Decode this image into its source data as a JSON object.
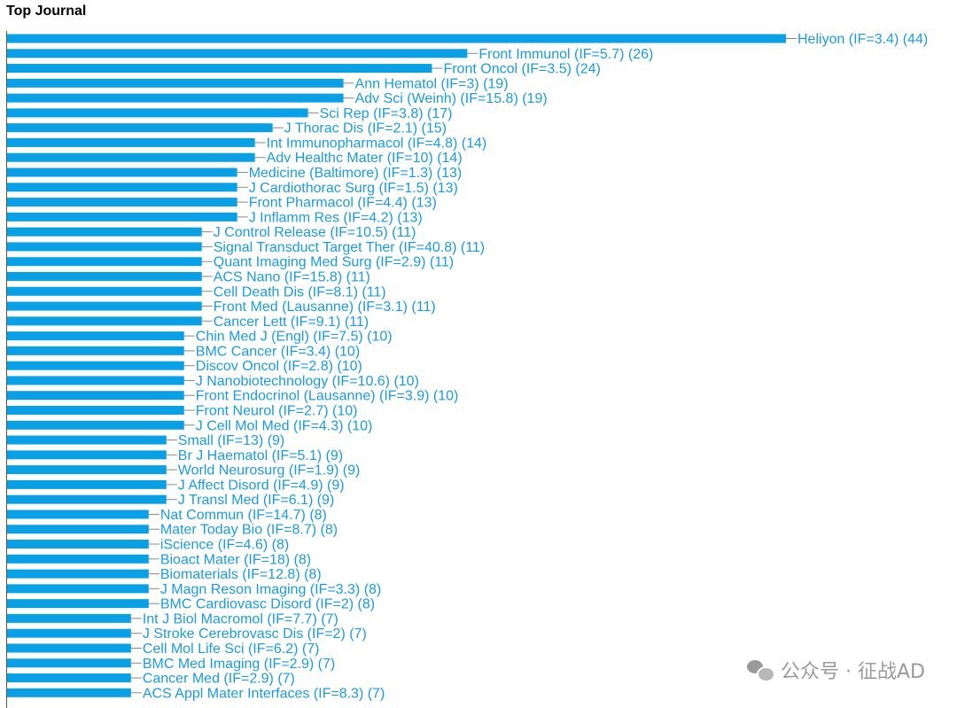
{
  "chart_data": {
    "type": "bar",
    "orientation": "horizontal",
    "title": "Top Journal",
    "xlabel": "",
    "ylabel": "",
    "xlim": [
      0,
      44
    ],
    "grid": false,
    "legend": "none",
    "bar_color": "#0aa0e6",
    "label_color": "#1a9be0",
    "categories": [
      "Heliyon (IF=3.4) (44)",
      "Front Immunol (IF=5.7) (26)",
      "Front Oncol (IF=3.5) (24)",
      "Ann Hematol (IF=3) (19)",
      "Adv Sci (Weinh) (IF=15.8) (19)",
      "Sci Rep (IF=3.8) (17)",
      "J Thorac Dis (IF=2.1) (15)",
      "Int Immunopharmacol (IF=4.8) (14)",
      "Adv Healthc Mater (IF=10) (14)",
      "Medicine (Baltimore) (IF=1.3) (13)",
      "J Cardiothorac Surg (IF=1.5) (13)",
      "Front Pharmacol (IF=4.4) (13)",
      "J Inflamm Res (IF=4.2) (13)",
      "J Control Release (IF=10.5) (11)",
      "Signal Transduct Target Ther (IF=40.8) (11)",
      "Quant Imaging Med Surg (IF=2.9) (11)",
      "ACS Nano (IF=15.8) (11)",
      "Cell Death Dis (IF=8.1) (11)",
      "Front Med (Lausanne) (IF=3.1) (11)",
      "Cancer Lett (IF=9.1) (11)",
      "Chin Med J (Engl) (IF=7.5) (10)",
      "BMC Cancer (IF=3.4) (10)",
      "Discov Oncol (IF=2.8) (10)",
      "J Nanobiotechnology (IF=10.6) (10)",
      "Front Endocrinol (Lausanne) (IF=3.9) (10)",
      "Front Neurol (IF=2.7) (10)",
      "J Cell Mol Med (IF=4.3) (10)",
      "Small (IF=13) (9)",
      "Br J Haematol (IF=5.1) (9)",
      "World Neurosurg (IF=1.9) (9)",
      "J Affect Disord (IF=4.9) (9)",
      "J Transl Med (IF=6.1) (9)",
      "Nat Commun (IF=14.7) (8)",
      "Mater Today Bio (IF=8.7) (8)",
      "iScience (IF=4.6) (8)",
      "Bioact Mater (IF=18) (8)",
      "Biomaterials (IF=12.8) (8)",
      "J Magn Reson Imaging (IF=3.3) (8)",
      "BMC Cardiovasc Disord (IF=2) (8)",
      "Int J Biol Macromol (IF=7.7) (7)",
      "J Stroke Cerebrovasc Dis (IF=2) (7)",
      "Cell Mol Life Sci (IF=6.2) (7)",
      "BMC Med Imaging (IF=2.9) (7)",
      "Cancer Med (IF=2.9) (7)",
      "ACS Appl Mater Interfaces (IF=8.3) (7)"
    ],
    "values": [
      44,
      26,
      24,
      19,
      19,
      17,
      15,
      14,
      14,
      13,
      13,
      13,
      13,
      11,
      11,
      11,
      11,
      11,
      11,
      11,
      10,
      10,
      10,
      10,
      10,
      10,
      10,
      9,
      9,
      9,
      9,
      9,
      8,
      8,
      8,
      8,
      8,
      8,
      8,
      7,
      7,
      7,
      7,
      7,
      7
    ]
  },
  "watermark": {
    "text": "公众号 · 征战AD",
    "icon": "wechat-icon"
  }
}
